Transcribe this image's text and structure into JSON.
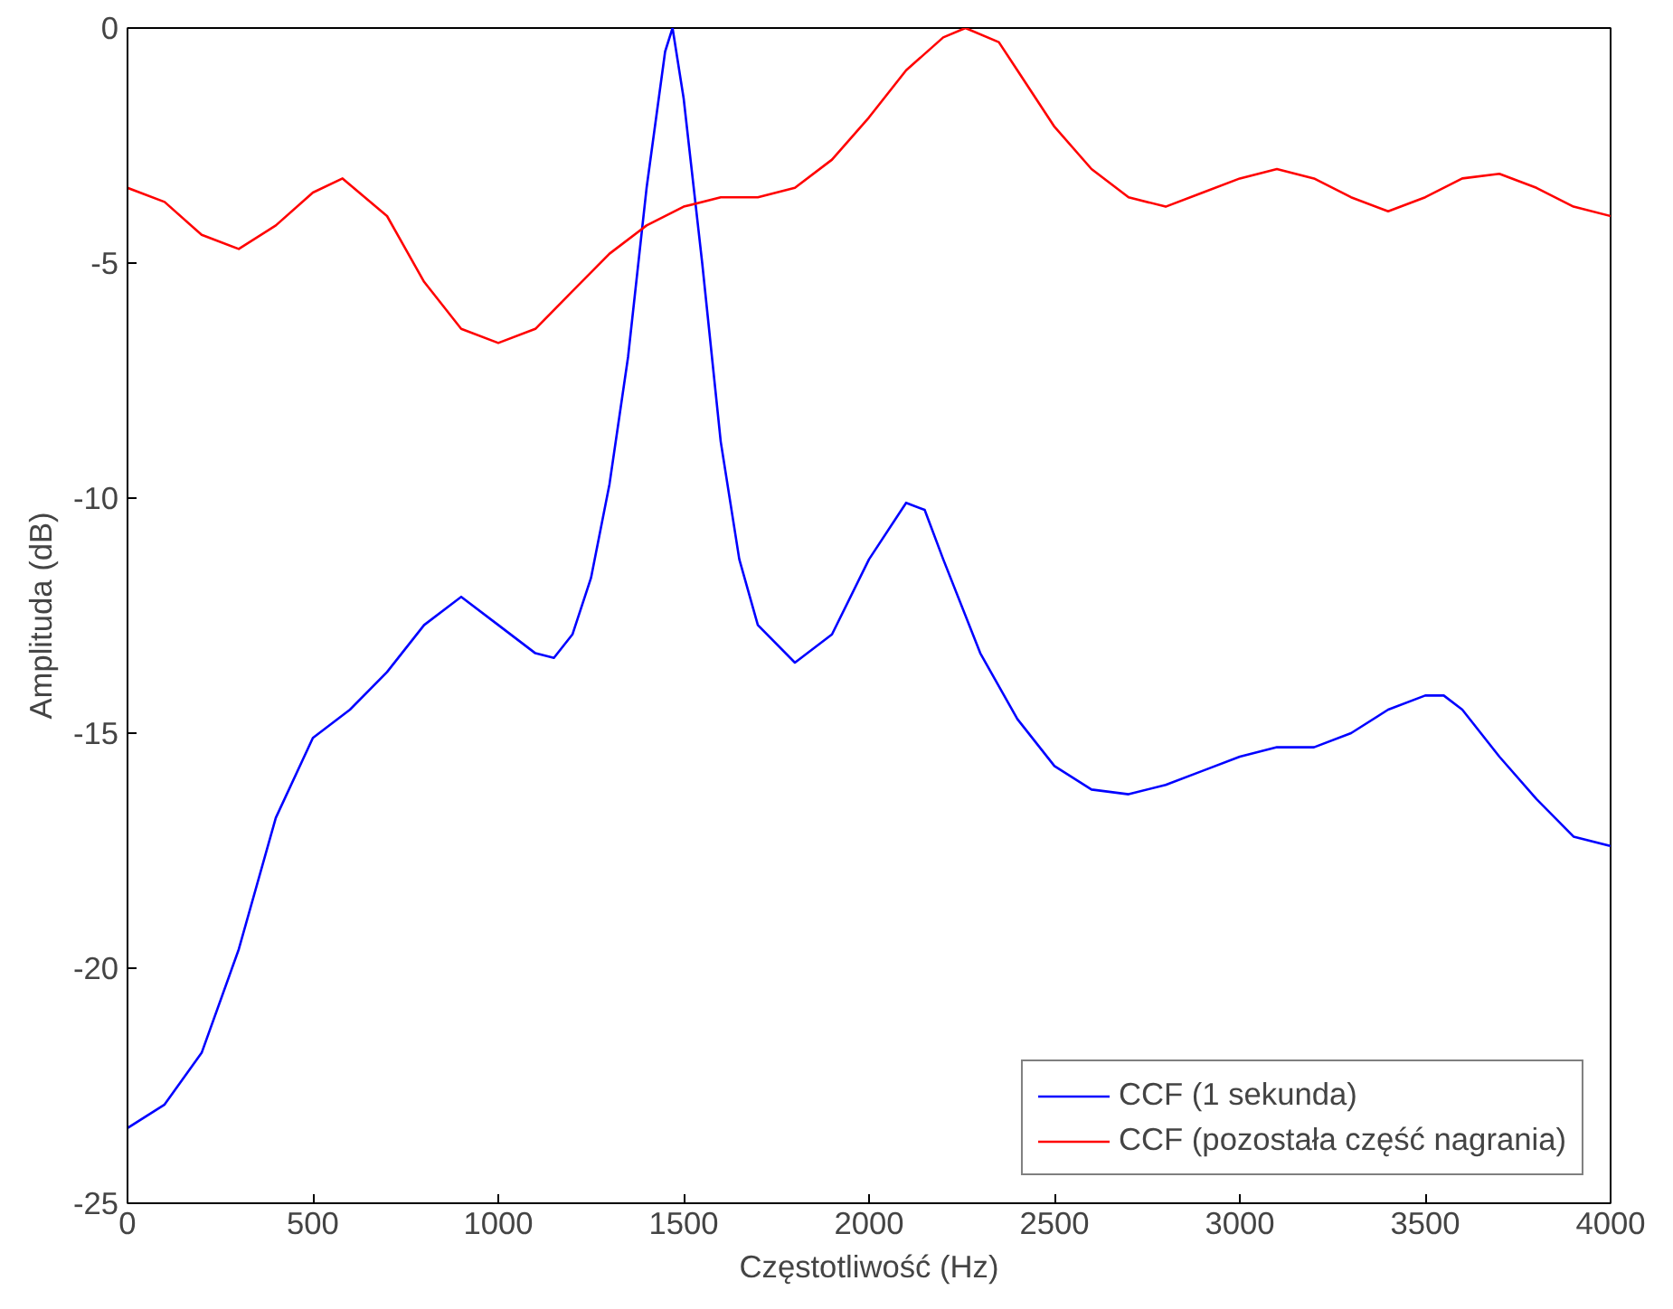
{
  "chart_data": {
    "type": "line",
    "xlabel": "Częstotliwość (Hz)",
    "ylabel": "Amplituda (dB)",
    "xlim": [
      0,
      4000
    ],
    "ylim": [
      -25,
      0
    ],
    "xticks": [
      0,
      500,
      1000,
      1500,
      2000,
      2500,
      3000,
      3500,
      4000
    ],
    "yticks": [
      -25,
      -20,
      -15,
      -10,
      -5,
      0
    ],
    "grid": false,
    "legend": "bottom right",
    "marker": "none",
    "line_style": "solid",
    "series": [
      {
        "name": "CCF (1 sekunda)",
        "color": "#0000ff",
        "x": [
          0,
          100,
          200,
          300,
          400,
          500,
          600,
          700,
          800,
          900,
          1000,
          1100,
          1150,
          1200,
          1250,
          1300,
          1350,
          1400,
          1450,
          1470,
          1500,
          1550,
          1600,
          1650,
          1700,
          1800,
          1900,
          2000,
          2100,
          2150,
          2200,
          2300,
          2400,
          2500,
          2600,
          2700,
          2800,
          2900,
          3000,
          3100,
          3200,
          3300,
          3400,
          3500,
          3550,
          3600,
          3700,
          3800,
          3900,
          4000
        ],
        "values": [
          -23.4,
          -22.9,
          -21.8,
          -19.6,
          -16.8,
          -15.1,
          -14.5,
          -13.7,
          -12.7,
          -12.1,
          -12.7,
          -13.3,
          -13.4,
          -12.9,
          -11.7,
          -9.7,
          -7.0,
          -3.4,
          -0.5,
          0,
          -1.5,
          -5.0,
          -8.8,
          -11.3,
          -12.7,
          -13.5,
          -12.9,
          -11.3,
          -10.1,
          -10.25,
          -11.3,
          -13.3,
          -14.7,
          -15.7,
          -16.2,
          -16.3,
          -16.1,
          -15.8,
          -15.5,
          -15.3,
          -15.3,
          -15.0,
          -14.5,
          -14.2,
          -14.2,
          -14.5,
          -15.5,
          -16.4,
          -17.2,
          -17.4
        ]
      },
      {
        "name": "CCF (pozostała część nagrania)",
        "color": "#ff0000",
        "x": [
          0,
          100,
          200,
          300,
          400,
          500,
          580,
          700,
          800,
          900,
          1000,
          1100,
          1200,
          1300,
          1400,
          1500,
          1600,
          1700,
          1800,
          1900,
          2000,
          2100,
          2200,
          2260,
          2350,
          2400,
          2500,
          2600,
          2700,
          2800,
          2900,
          3000,
          3100,
          3200,
          3300,
          3400,
          3500,
          3600,
          3700,
          3800,
          3900,
          4000
        ],
        "values": [
          -3.4,
          -3.7,
          -4.4,
          -4.7,
          -4.2,
          -3.5,
          -3.2,
          -4.0,
          -5.4,
          -6.4,
          -6.7,
          -6.4,
          -5.6,
          -4.8,
          -4.2,
          -3.8,
          -3.6,
          -3.6,
          -3.4,
          -2.8,
          -1.9,
          -0.9,
          -0.2,
          0,
          -0.3,
          -0.9,
          -2.1,
          -3.0,
          -3.6,
          -3.8,
          -3.5,
          -3.2,
          -3.0,
          -3.2,
          -3.6,
          -3.9,
          -3.6,
          -3.2,
          -3.1,
          -3.4,
          -3.8,
          -4.0
        ]
      }
    ]
  }
}
